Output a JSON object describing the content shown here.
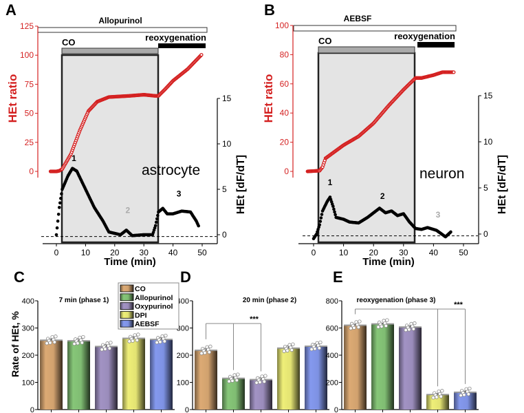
{
  "chart_data": [
    {
      "type": "line",
      "panel": "A",
      "title": "Allopurinol",
      "cell_label": "astrocyte",
      "xlabel": "Time (min)",
      "ylabel_left": "HEt ratio",
      "ylabel_right": "HEt [dF/dT]",
      "xlim": [
        -5,
        55
      ],
      "xticks": [
        0,
        10,
        20,
        30,
        40,
        50
      ],
      "ylim_left": [
        0,
        125
      ],
      "yticks_left": [
        0,
        25,
        50,
        75,
        100,
        125
      ],
      "ylim_right": [
        0,
        15
      ],
      "yticks_right": [
        0,
        5,
        10,
        15
      ],
      "bars": {
        "co_label": "CO",
        "co_range": [
          1.5,
          34.5
        ],
        "reox_label": "reoxygenation",
        "reox_range": [
          34.5,
          51
        ],
        "drug_range": [
          -5,
          52
        ]
      },
      "peak_labels": [
        {
          "text": "1",
          "t": 6,
          "v": 8.1,
          "color": "#000"
        },
        {
          "text": "2",
          "t": 24.5,
          "v": 2.4,
          "color": "#aaa"
        },
        {
          "text": "3",
          "t": 42,
          "v": 4.2,
          "color": "#000"
        }
      ],
      "series": [
        {
          "name": "HEt ratio",
          "color": "#d42020",
          "axis": "left",
          "points": [
            [
              -2,
              0
            ],
            [
              0,
              0
            ],
            [
              1,
              0.5
            ],
            [
              2,
              2
            ],
            [
              5,
              15
            ],
            [
              8,
              35
            ],
            [
              11,
              52
            ],
            [
              14,
              60
            ],
            [
              18,
              64
            ],
            [
              25,
              65
            ],
            [
              30,
              66
            ],
            [
              34,
              65
            ],
            [
              35,
              65
            ],
            [
              37,
              70
            ],
            [
              40,
              78
            ],
            [
              45,
              88
            ],
            [
              50,
              101
            ]
          ]
        },
        {
          "name": "HEt dF/dT",
          "color": "#000000",
          "axis": "right",
          "points": [
            [
              0,
              0
            ],
            [
              1,
              3
            ],
            [
              2,
              5
            ],
            [
              4,
              6.5
            ],
            [
              5.5,
              7.3
            ],
            [
              7,
              7
            ],
            [
              10,
              5
            ],
            [
              13,
              3
            ],
            [
              16,
              1.5
            ],
            [
              18,
              0.3
            ],
            [
              22,
              0
            ],
            [
              24,
              0.5
            ],
            [
              26,
              -0.1
            ],
            [
              30,
              0
            ],
            [
              33,
              0
            ],
            [
              34,
              1
            ],
            [
              35,
              2.5
            ],
            [
              36.5,
              2.9
            ],
            [
              38,
              2.3
            ],
            [
              40,
              2.3
            ],
            [
              43,
              2.6
            ],
            [
              46,
              2.5
            ],
            [
              48,
              1.5
            ],
            [
              49,
              0.8
            ]
          ]
        }
      ]
    },
    {
      "type": "line",
      "panel": "B",
      "title": "AEBSF",
      "cell_label": "neuron",
      "xlabel": "Time (min)",
      "ylabel_left": "HEt ratio",
      "ylabel_right": "HEt [dF/dT]",
      "xlim": [
        -5,
        55
      ],
      "xticks": [
        0,
        10,
        20,
        30,
        40,
        50
      ],
      "ylim_left": [
        0,
        100
      ],
      "yticks_left": [
        0,
        20,
        40,
        60,
        80,
        100
      ],
      "ylim_right": [
        0,
        15
      ],
      "yticks_right": [
        0,
        5,
        10,
        15
      ],
      "bars": {
        "co_label": "CO",
        "co_range": [
          1.5,
          33.5
        ],
        "reox_label": "reoxygenation",
        "reox_range": [
          34.5,
          47
        ],
        "drug_range": [
          -4.5,
          47.5
        ]
      },
      "peak_labels": [
        {
          "text": "1",
          "t": 5.5,
          "v": 5.3,
          "color": "#000"
        },
        {
          "text": "2",
          "t": 23,
          "v": 3.8,
          "color": "#000"
        },
        {
          "text": "3",
          "t": 41.5,
          "v": 1.8,
          "color": "#aaa"
        }
      ],
      "series": [
        {
          "name": "HEt ratio",
          "color": "#d42020",
          "axis": "left",
          "points": [
            [
              -2,
              0
            ],
            [
              2,
              0.5
            ],
            [
              3,
              3
            ],
            [
              4,
              9
            ],
            [
              6,
              12
            ],
            [
              10,
              18
            ],
            [
              15,
              24
            ],
            [
              20,
              33
            ],
            [
              25,
              45
            ],
            [
              30,
              56
            ],
            [
              34,
              64
            ],
            [
              36,
              64
            ],
            [
              40,
              66
            ],
            [
              43,
              68
            ],
            [
              47,
              68
            ]
          ]
        },
        {
          "name": "HEt dF/dT",
          "color": "#000000",
          "axis": "right",
          "points": [
            [
              0,
              -0.5
            ],
            [
              1,
              0
            ],
            [
              2,
              1
            ],
            [
              3,
              2.5
            ],
            [
              4.5,
              3.5
            ],
            [
              5.5,
              4
            ],
            [
              6.5,
              3
            ],
            [
              7.5,
              1.8
            ],
            [
              10,
              1.6
            ],
            [
              12,
              1.3
            ],
            [
              15,
              1.2
            ],
            [
              18,
              1.8
            ],
            [
              22,
              2.8
            ],
            [
              24,
              2.3
            ],
            [
              26,
              2.5
            ],
            [
              28,
              2
            ],
            [
              30,
              2.2
            ],
            [
              32,
              1.3
            ],
            [
              34,
              0.6
            ],
            [
              36,
              0.5
            ],
            [
              38,
              0.7
            ],
            [
              41,
              0.4
            ],
            [
              44,
              -0.3
            ],
            [
              46,
              0.3
            ]
          ]
        }
      ]
    },
    {
      "type": "bar",
      "panel": "C",
      "title": "7 min (phase 1)",
      "ylabel": "Rate of HEt, %",
      "ylim": [
        0,
        400
      ],
      "yticks": [
        0,
        100,
        200,
        300,
        400
      ],
      "categories": [
        "CO",
        "Allopurinol",
        "Oxypurinol",
        "DPI",
        "AEBSF"
      ],
      "values": [
        255,
        253,
        232,
        262,
        258
      ],
      "errors": [
        5,
        8,
        7,
        6,
        7
      ]
    },
    {
      "type": "bar",
      "panel": "D",
      "title": "20 min (phase 2)",
      "ylim": [
        0,
        400
      ],
      "yticks": [
        0,
        100,
        200,
        300,
        400
      ],
      "categories": [
        "CO",
        "Allopurinol",
        "Oxypurinol",
        "DPI",
        "AEBSF"
      ],
      "values": [
        218,
        115,
        110,
        226,
        233
      ],
      "errors": [
        7,
        5,
        7,
        8,
        9
      ],
      "significance": {
        "text": "***",
        "from": 0,
        "to": [
          1,
          2
        ]
      }
    },
    {
      "type": "bar",
      "panel": "E",
      "title": "reoxygenation (phase 3)",
      "ylim": [
        0,
        800
      ],
      "yticks": [
        0,
        200,
        400,
        600,
        800
      ],
      "categories": [
        "CO",
        "Allopurinol",
        "Oxypurinol",
        "DPI",
        "AEBSF"
      ],
      "values": [
        620,
        630,
        607,
        110,
        127
      ],
      "errors": [
        8,
        6,
        9,
        8,
        9
      ],
      "significance": {
        "text": "***",
        "from": 0,
        "to": [
          3,
          4
        ]
      }
    }
  ],
  "legend": {
    "entries": [
      "CO",
      "Allopurinol",
      "Oxypurinol",
      "DPI",
      "AEBSF"
    ],
    "colors": [
      "#dcaa74",
      "#86c678",
      "#a293c4",
      "#eeee78",
      "#8499ee"
    ]
  },
  "colors": {
    "red": "#d42020",
    "shade": "#e4e4e4",
    "co_bar": "#aaaaaa"
  }
}
